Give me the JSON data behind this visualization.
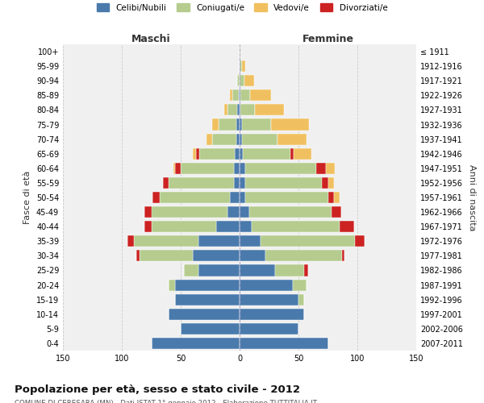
{
  "age_groups": [
    "0-4",
    "5-9",
    "10-14",
    "15-19",
    "20-24",
    "25-29",
    "30-34",
    "35-39",
    "40-44",
    "45-49",
    "50-54",
    "55-59",
    "60-64",
    "65-69",
    "70-74",
    "75-79",
    "80-84",
    "85-89",
    "90-94",
    "95-99",
    "100+"
  ],
  "birth_years": [
    "2007-2011",
    "2002-2006",
    "1997-2001",
    "1992-1996",
    "1987-1991",
    "1982-1986",
    "1977-1981",
    "1972-1976",
    "1967-1971",
    "1962-1966",
    "1957-1961",
    "1952-1956",
    "1947-1951",
    "1942-1946",
    "1937-1941",
    "1932-1936",
    "1927-1931",
    "1922-1926",
    "1917-1921",
    "1912-1916",
    "≤ 1911"
  ],
  "colors": {
    "celibi": "#4a7aac",
    "coniugati": "#b5cc8e",
    "vedovi": "#f0c060",
    "divorziati": "#cc2222"
  },
  "maschi": {
    "celibi": [
      75,
      50,
      60,
      55,
      55,
      35,
      40,
      35,
      20,
      10,
      8,
      5,
      5,
      4,
      3,
      3,
      2,
      1,
      0,
      0,
      0
    ],
    "coniugati": [
      0,
      0,
      0,
      0,
      5,
      12,
      45,
      55,
      55,
      65,
      60,
      55,
      45,
      30,
      20,
      15,
      8,
      5,
      2,
      0,
      0
    ],
    "vedovi": [
      0,
      0,
      0,
      0,
      0,
      0,
      0,
      0,
      0,
      0,
      0,
      0,
      1,
      3,
      5,
      5,
      3,
      2,
      0,
      0,
      0
    ],
    "divorziati": [
      0,
      0,
      0,
      0,
      0,
      0,
      3,
      5,
      6,
      6,
      6,
      5,
      5,
      3,
      0,
      0,
      0,
      0,
      0,
      0,
      0
    ]
  },
  "femmine": {
    "celibi": [
      75,
      50,
      55,
      50,
      45,
      30,
      22,
      18,
      10,
      8,
      5,
      5,
      5,
      3,
      2,
      2,
      1,
      1,
      0,
      0,
      0
    ],
    "coniugati": [
      0,
      0,
      0,
      5,
      12,
      25,
      65,
      80,
      75,
      70,
      70,
      65,
      60,
      40,
      30,
      25,
      12,
      8,
      4,
      2,
      0
    ],
    "vedovi": [
      0,
      0,
      0,
      0,
      0,
      0,
      0,
      0,
      0,
      0,
      5,
      5,
      8,
      15,
      25,
      32,
      25,
      18,
      8,
      3,
      1
    ],
    "divorziati": [
      0,
      0,
      0,
      0,
      0,
      3,
      2,
      8,
      12,
      8,
      5,
      5,
      8,
      3,
      0,
      0,
      0,
      0,
      0,
      0,
      0
    ]
  },
  "title": "Popolazione per età, sesso e stato civile - 2012",
  "subtitle": "COMUNE DI CERESARA (MN) - Dati ISTAT 1° gennaio 2012 - Elaborazione TUTTITALIA.IT",
  "xlabel_left": "Maschi",
  "xlabel_right": "Femmine",
  "ylabel_left": "Fasce di età",
  "ylabel_right": "Anni di nascita",
  "xlim": 150,
  "legend_labels": [
    "Celibi/Nubili",
    "Coniugati/e",
    "Vedovi/e",
    "Divorziati/e"
  ],
  "bg_color": "#ffffff",
  "plot_bg_color": "#f0f0f0",
  "grid_color": "#cccccc"
}
